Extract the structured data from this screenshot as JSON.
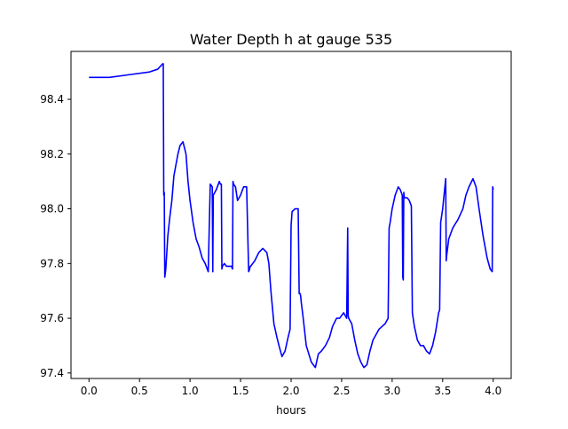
{
  "chart_data": {
    "type": "line",
    "title": "Water Depth h at gauge 535",
    "xlabel": "hours",
    "ylabel": "",
    "xlim": [
      -0.178,
      4.178
    ],
    "ylim": [
      97.38,
      98.575
    ],
    "xticks": [
      0.0,
      0.5,
      1.0,
      1.5,
      2.0,
      2.5,
      3.0,
      3.5,
      4.0
    ],
    "xtick_labels": [
      "0.0",
      "0.5",
      "1.0",
      "1.5",
      "2.0",
      "2.5",
      "3.0",
      "3.5",
      "4.0"
    ],
    "yticks": [
      97.4,
      97.6,
      97.8,
      98.0,
      98.2,
      98.4
    ],
    "ytick_labels": [
      "97.4",
      "97.6",
      "97.8",
      "98.0",
      "98.2",
      "98.4"
    ],
    "grid": false,
    "legend": null,
    "series": [
      {
        "color": "#0000ff",
        "x": [
          0.0,
          0.2,
          0.4,
          0.6,
          0.68,
          0.73,
          0.735,
          0.74,
          0.745,
          0.75,
          0.76,
          0.78,
          0.8,
          0.82,
          0.84,
          0.86,
          0.88,
          0.9,
          0.93,
          0.96,
          0.98,
          1.0,
          1.03,
          1.06,
          1.09,
          1.12,
          1.15,
          1.18,
          1.2,
          1.22,
          1.225,
          1.23,
          1.26,
          1.29,
          1.3,
          1.31,
          1.315,
          1.32,
          1.34,
          1.36,
          1.38,
          1.4,
          1.41,
          1.42,
          1.425,
          1.43,
          1.45,
          1.47,
          1.5,
          1.53,
          1.56,
          1.58,
          1.59,
          1.595,
          1.6,
          1.64,
          1.68,
          1.72,
          1.76,
          1.78,
          1.8,
          1.83,
          1.86,
          1.88,
          1.91,
          1.94,
          1.97,
          1.99,
          2.0,
          2.01,
          2.04,
          2.07,
          2.08,
          2.09,
          2.095,
          2.1,
          2.12,
          2.15,
          2.2,
          2.24,
          2.27,
          2.3,
          2.34,
          2.38,
          2.41,
          2.45,
          2.48,
          2.52,
          2.55,
          2.56,
          2.565,
          2.57,
          2.6,
          2.63,
          2.66,
          2.69,
          2.72,
          2.75,
          2.78,
          2.81,
          2.84,
          2.87,
          2.9,
          2.93,
          2.96,
          2.97,
          2.98,
          3.0,
          3.03,
          3.06,
          3.08,
          3.1,
          3.105,
          3.11,
          3.115,
          3.12,
          3.15,
          3.17,
          3.19,
          3.2,
          3.22,
          3.25,
          3.28,
          3.31,
          3.34,
          3.37,
          3.4,
          3.43,
          3.46,
          3.47,
          3.48,
          3.5,
          3.53,
          3.535,
          3.54,
          3.56,
          3.6,
          3.65,
          3.7,
          3.73,
          3.76,
          3.8,
          3.83,
          3.86,
          3.9,
          3.94,
          3.97,
          3.99,
          3.995,
          4.0
        ],
        "y": [
          98.48,
          98.48,
          98.49,
          98.5,
          98.51,
          98.53,
          98.53,
          98.05,
          98.06,
          97.75,
          97.78,
          97.9,
          97.97,
          98.03,
          98.12,
          98.16,
          98.2,
          98.23,
          98.245,
          98.2,
          98.1,
          98.03,
          97.95,
          97.89,
          97.86,
          97.82,
          97.8,
          97.77,
          98.09,
          98.08,
          97.77,
          98.05,
          98.07,
          98.1,
          98.09,
          98.09,
          97.78,
          97.79,
          97.8,
          97.79,
          97.79,
          97.79,
          97.79,
          97.78,
          98.1,
          98.09,
          98.08,
          98.03,
          98.05,
          98.08,
          98.08,
          97.77,
          97.78,
          97.79,
          97.79,
          97.81,
          97.84,
          97.855,
          97.84,
          97.8,
          97.7,
          97.58,
          97.53,
          97.5,
          97.46,
          97.48,
          97.53,
          97.56,
          97.94,
          97.99,
          98.0,
          98.0,
          97.69,
          97.69,
          97.68,
          97.66,
          97.6,
          97.5,
          97.44,
          97.42,
          97.47,
          97.48,
          97.5,
          97.53,
          97.57,
          97.6,
          97.6,
          97.62,
          97.6,
          97.93,
          97.61,
          97.6,
          97.58,
          97.52,
          97.47,
          97.44,
          97.42,
          97.43,
          97.48,
          97.52,
          97.54,
          97.56,
          97.57,
          97.58,
          97.6,
          97.93,
          97.95,
          98.0,
          98.05,
          98.08,
          98.07,
          98.05,
          97.75,
          97.74,
          98.06,
          98.04,
          98.04,
          98.03,
          98.01,
          97.62,
          97.57,
          97.52,
          97.5,
          97.5,
          97.48,
          97.47,
          97.5,
          97.55,
          97.62,
          97.63,
          97.95,
          98.0,
          98.11,
          97.81,
          97.83,
          97.89,
          97.93,
          97.96,
          98.0,
          98.05,
          98.08,
          98.11,
          98.08,
          98.0,
          97.9,
          97.82,
          97.78,
          97.77,
          98.08,
          98.07
        ]
      }
    ]
  }
}
